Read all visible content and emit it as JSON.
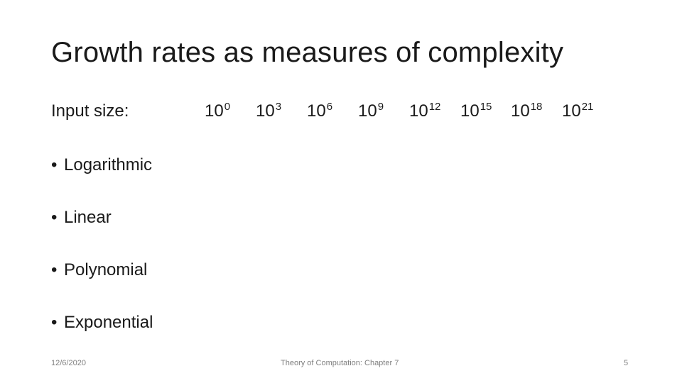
{
  "slide": {
    "title": "Growth rates as measures of complexity",
    "input_label": "Input size:",
    "input_sizes": [
      {
        "base": "10",
        "exponent": "0"
      },
      {
        "base": "10",
        "exponent": "3"
      },
      {
        "base": "10",
        "exponent": "6"
      },
      {
        "base": "10",
        "exponent": "9"
      },
      {
        "base": "10",
        "exponent": "12"
      },
      {
        "base": "10",
        "exponent": "15"
      },
      {
        "base": "10",
        "exponent": "18"
      },
      {
        "base": "10",
        "exponent": "21"
      }
    ],
    "bullet_symbol": "•",
    "bullets": [
      "Logarithmic",
      "Linear",
      "Polynomial",
      "Exponential"
    ]
  },
  "footer": {
    "date": "12/6/2020",
    "center": "Theory of Computation: Chapter 7",
    "page_number": "5"
  }
}
